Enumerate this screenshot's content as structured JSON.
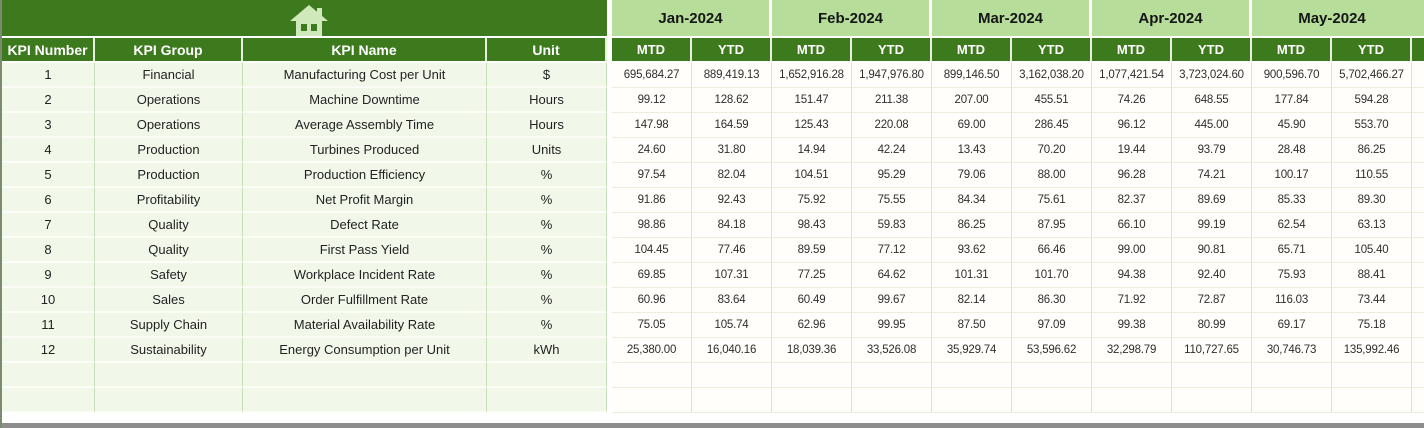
{
  "icons": {
    "home": "home-icon"
  },
  "colors": {
    "dark_green": "#3d7a1d",
    "light_green": "#b7dd9b",
    "row_tint": "#f1f8ea",
    "icon_green": "#cfe9bb",
    "bottom_bar": "#8d8d8d"
  },
  "table": {
    "columns": [
      "KPI Number",
      "KPI Group",
      "KPI Name",
      "Unit"
    ],
    "months": [
      "Jan-2024",
      "Feb-2024",
      "Mar-2024",
      "Apr-2024",
      "May-2024"
    ],
    "period_headers": [
      "MTD",
      "YTD"
    ],
    "rows": [
      {
        "number": "1",
        "group": "Financial",
        "name": "Manufacturing Cost per Unit",
        "unit": "$",
        "values": [
          "695,684.27",
          "889,419.13",
          "1,652,916.28",
          "1,947,976.80",
          "899,146.50",
          "3,162,038.20",
          "1,077,421.54",
          "3,723,024.60",
          "900,596.70",
          "5,702,466.27"
        ]
      },
      {
        "number": "2",
        "group": "Operations",
        "name": "Machine Downtime",
        "unit": "Hours",
        "values": [
          "99.12",
          "128.62",
          "151.47",
          "211.38",
          "207.00",
          "455.51",
          "74.26",
          "648.55",
          "177.84",
          "594.28"
        ]
      },
      {
        "number": "3",
        "group": "Operations",
        "name": "Average Assembly Time",
        "unit": "Hours",
        "values": [
          "147.98",
          "164.59",
          "125.43",
          "220.08",
          "69.00",
          "286.45",
          "96.12",
          "445.00",
          "45.90",
          "553.70"
        ]
      },
      {
        "number": "4",
        "group": "Production",
        "name": "Turbines Produced",
        "unit": "Units",
        "values": [
          "24.60",
          "31.80",
          "14.94",
          "42.24",
          "13.43",
          "70.20",
          "19.44",
          "93.79",
          "28.48",
          "86.25"
        ]
      },
      {
        "number": "5",
        "group": "Production",
        "name": "Production Efficiency",
        "unit": "%",
        "values": [
          "97.54",
          "82.04",
          "104.51",
          "95.29",
          "79.06",
          "88.00",
          "96.28",
          "74.21",
          "100.17",
          "110.55"
        ]
      },
      {
        "number": "6",
        "group": "Profitability",
        "name": "Net Profit Margin",
        "unit": "%",
        "values": [
          "91.86",
          "92.43",
          "75.92",
          "75.55",
          "84.34",
          "75.61",
          "82.37",
          "89.69",
          "85.33",
          "89.30"
        ]
      },
      {
        "number": "7",
        "group": "Quality",
        "name": "Defect Rate",
        "unit": "%",
        "values": [
          "98.86",
          "84.18",
          "98.43",
          "59.83",
          "86.25",
          "87.95",
          "66.10",
          "99.19",
          "62.54",
          "63.13"
        ]
      },
      {
        "number": "8",
        "group": "Quality",
        "name": "First Pass Yield",
        "unit": "%",
        "values": [
          "104.45",
          "77.46",
          "89.59",
          "77.12",
          "93.62",
          "66.46",
          "99.00",
          "90.81",
          "65.71",
          "105.40"
        ]
      },
      {
        "number": "9",
        "group": "Safety",
        "name": "Workplace Incident Rate",
        "unit": "%",
        "values": [
          "69.85",
          "107.31",
          "77.25",
          "64.62",
          "101.31",
          "101.70",
          "94.38",
          "92.40",
          "75.93",
          "88.41"
        ]
      },
      {
        "number": "10",
        "group": "Sales",
        "name": "Order Fulfillment Rate",
        "unit": "%",
        "values": [
          "60.96",
          "83.64",
          "60.49",
          "99.67",
          "82.14",
          "86.30",
          "71.92",
          "72.87",
          "116.03",
          "73.44"
        ]
      },
      {
        "number": "11",
        "group": "Supply Chain",
        "name": "Material Availability Rate",
        "unit": "%",
        "values": [
          "75.05",
          "105.74",
          "62.96",
          "99.95",
          "87.50",
          "97.09",
          "99.38",
          "80.99",
          "69.17",
          "75.18"
        ]
      },
      {
        "number": "12",
        "group": "Sustainability",
        "name": "Energy Consumption per Unit",
        "unit": "kWh",
        "values": [
          "25,380.00",
          "16,040.16",
          "18,039.36",
          "33,526.08",
          "35,929.74",
          "53,596.62",
          "32,298.79",
          "110,727.65",
          "30,746.73",
          "135,992.46"
        ]
      },
      {
        "number": "",
        "group": "",
        "name": "",
        "unit": "",
        "values": [
          "",
          "",
          "",
          "",
          "",
          "",
          "",
          "",
          "",
          ""
        ]
      },
      {
        "number": "",
        "group": "",
        "name": "",
        "unit": "",
        "values": [
          "",
          "",
          "",
          "",
          "",
          "",
          "",
          "",
          "",
          ""
        ]
      }
    ]
  }
}
